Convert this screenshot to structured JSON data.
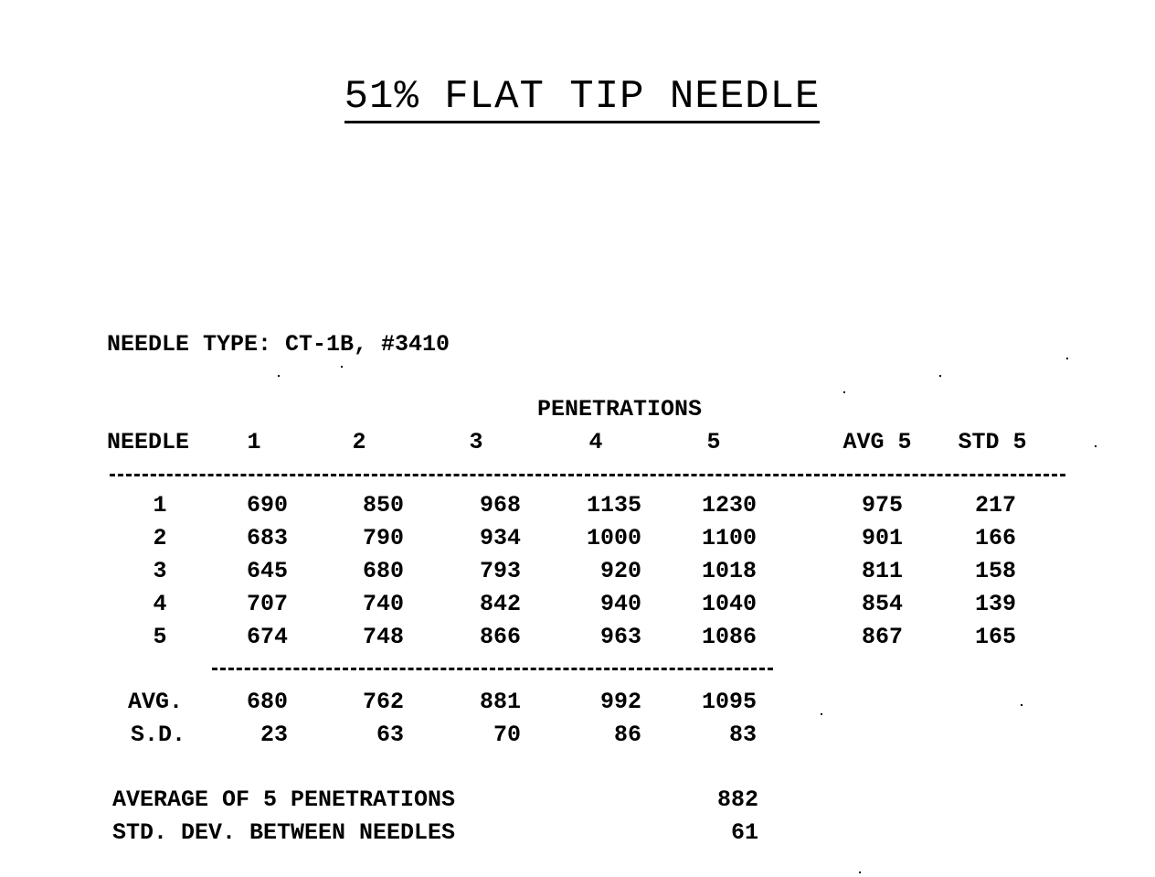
{
  "title": "51% FLAT TIP NEEDLE",
  "needle_type": "NEEDLE TYPE: CT-1B, #3410",
  "group_header": "PENETRATIONS",
  "headers": [
    "NEEDLE",
    "1",
    "2",
    "3",
    "4",
    "5",
    "AVG 5",
    "STD 5"
  ],
  "rows": [
    {
      "needle": "1",
      "values": [
        "690",
        "850",
        "968",
        "1135",
        "1230",
        "975",
        "217"
      ]
    },
    {
      "needle": "2",
      "values": [
        "683",
        "790",
        "934",
        "1000",
        "1100",
        "901",
        "166"
      ]
    },
    {
      "needle": "3",
      "values": [
        "645",
        "680",
        "793",
        "920",
        "1018",
        "811",
        "158"
      ]
    },
    {
      "needle": "4",
      "values": [
        "707",
        "740",
        "842",
        "940",
        "1040",
        "854",
        "139"
      ]
    },
    {
      "needle": "5",
      "values": [
        "674",
        "748",
        "866",
        "963",
        "1086",
        "867",
        "165"
      ]
    }
  ],
  "avg_row": {
    "label": "AVG.",
    "values": [
      "680",
      "762",
      "881",
      "992",
      "1095"
    ]
  },
  "sd_row": {
    "label": "S.D.",
    "values": [
      "23",
      "63",
      "70",
      "86",
      "83"
    ]
  },
  "summary": [
    {
      "label": "AVERAGE OF 5 PENETRATIONS",
      "value": "882"
    },
    {
      "label": "STD. DEV. BETWEEN NEEDLES",
      "value": "61"
    }
  ]
}
